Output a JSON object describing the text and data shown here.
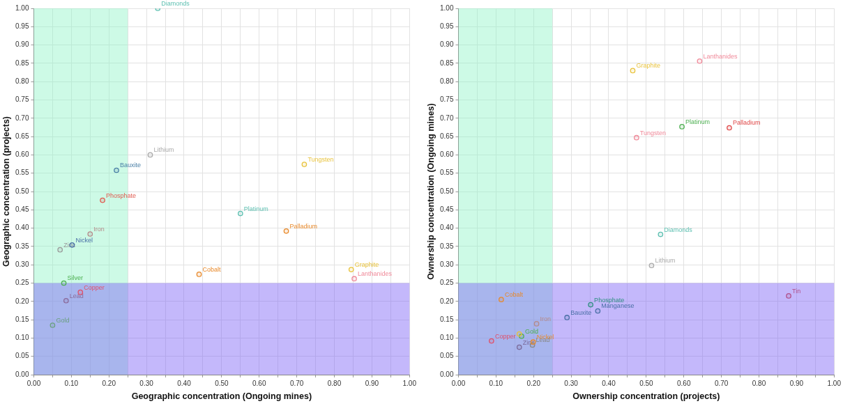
{
  "chart_data": [
    {
      "type": "scatter",
      "xlabel": "Geographic concentration (Ongoing mines)",
      "ylabel": "Geographic concentration (projects)",
      "marker": "circle",
      "grid": true,
      "legend": false,
      "xlim": [
        0,
        1
      ],
      "ylim": [
        0,
        1
      ],
      "xticks": [
        {
          "value": 0,
          "label": "0.00"
        },
        {
          "value": 0.05,
          "label": null
        },
        {
          "value": 0.1,
          "label": "0.10"
        },
        {
          "value": 0.15,
          "label": null
        },
        {
          "value": 0.2,
          "label": "0.20"
        },
        {
          "value": 0.25,
          "label": null
        },
        {
          "value": 0.3,
          "label": "0.30"
        },
        {
          "value": 0.35,
          "label": null
        },
        {
          "value": 0.4,
          "label": "0.40"
        },
        {
          "value": 0.45,
          "label": null
        },
        {
          "value": 0.5,
          "label": "0.50"
        },
        {
          "value": 0.55,
          "label": null
        },
        {
          "value": 0.6,
          "label": "0.60"
        },
        {
          "value": 0.65,
          "label": null
        },
        {
          "value": 0.7,
          "label": "0.70"
        },
        {
          "value": 0.75,
          "label": null
        },
        {
          "value": 0.8,
          "label": "0.80"
        },
        {
          "value": 0.85,
          "label": null
        },
        {
          "value": 0.9,
          "label": "0.90"
        },
        {
          "value": 0.95,
          "label": null
        },
        {
          "value": 1,
          "label": "1.00"
        }
      ],
      "yticks": [
        {
          "value": 0,
          "label": "0.00"
        },
        {
          "value": 0.05,
          "label": "0.05"
        },
        {
          "value": 0.1,
          "label": "0.10"
        },
        {
          "value": 0.15,
          "label": "0.15"
        },
        {
          "value": 0.2,
          "label": "0.20"
        },
        {
          "value": 0.25,
          "label": "0.25"
        },
        {
          "value": 0.3,
          "label": "0.30"
        },
        {
          "value": 0.35,
          "label": "0.35"
        },
        {
          "value": 0.4,
          "label": "0.40"
        },
        {
          "value": 0.45,
          "label": "0.45"
        },
        {
          "value": 0.5,
          "label": "0.50"
        },
        {
          "value": 0.55,
          "label": "0.55"
        },
        {
          "value": 0.6,
          "label": "0.60"
        },
        {
          "value": 0.65,
          "label": "0.65"
        },
        {
          "value": 0.7,
          "label": "0.70"
        },
        {
          "value": 0.75,
          "label": "0.75"
        },
        {
          "value": 0.8,
          "label": "0.80"
        },
        {
          "value": 0.85,
          "label": "0.85"
        },
        {
          "value": 0.9,
          "label": "0.90"
        },
        {
          "value": 0.95,
          "label": "0.95"
        },
        {
          "value": 1,
          "label": "1.00"
        }
      ],
      "bands": [
        {
          "axis": "x",
          "from": 0,
          "to": 0.25,
          "color": "#90f4c7"
        },
        {
          "axis": "y",
          "from": 0,
          "to": 0.25,
          "color": "#7c61f6"
        }
      ],
      "series": [
        {
          "name": "Diamonds",
          "color": "#5bbfb0",
          "x": [
            0.33
          ],
          "values": [
            1.0
          ]
        },
        {
          "name": "Lithium",
          "color": "#aaaaaa",
          "x": [
            0.31
          ],
          "values": [
            0.6
          ]
        },
        {
          "name": "Bauxite",
          "color": "#4a7fa6",
          "x": [
            0.22
          ],
          "values": [
            0.558
          ]
        },
        {
          "name": "Tungsten",
          "color": "#e8c23a",
          "x": [
            0.72
          ],
          "values": [
            0.574
          ]
        },
        {
          "name": "Phosphate",
          "color": "#e05a4f",
          "x": [
            0.183
          ],
          "values": [
            0.476
          ]
        },
        {
          "name": "Platinum",
          "color": "#5bbfb0",
          "x": [
            0.55
          ],
          "values": [
            0.44
          ]
        },
        {
          "name": "Palladium",
          "color": "#e8892a",
          "x": [
            0.672
          ],
          "values": [
            0.392
          ]
        },
        {
          "name": "Iron",
          "color": "#b58a8a",
          "x": [
            0.15
          ],
          "values": [
            0.384
          ]
        },
        {
          "name": "Nickel",
          "color": "#4a6fa6",
          "x": [
            0.102
          ],
          "values": [
            0.354
          ]
        },
        {
          "name": "Zinc",
          "color": "#999999",
          "x": [
            0.07
          ],
          "values": [
            0.341
          ]
        },
        {
          "name": "Cobalt",
          "color": "#e8892a",
          "x": [
            0.44
          ],
          "values": [
            0.274
          ]
        },
        {
          "name": "Graphite",
          "color": "#e8c23a",
          "x": [
            0.845
          ],
          "values": [
            0.287
          ]
        },
        {
          "name": "Lanthanides",
          "color": "#f08a9a",
          "x": [
            0.853
          ],
          "values": [
            0.262
          ]
        },
        {
          "name": "Silver",
          "color": "#4caf50",
          "x": [
            0.08
          ],
          "values": [
            0.25
          ]
        },
        {
          "name": "Copper",
          "color": "#e0506a",
          "x": [
            0.124
          ],
          "values": [
            0.225
          ]
        },
        {
          "name": "Lead",
          "color": "#8a6a9a",
          "x": [
            0.086
          ],
          "values": [
            0.202
          ]
        },
        {
          "name": "Gold",
          "color": "#6aa080",
          "x": [
            0.05
          ],
          "values": [
            0.135
          ]
        }
      ]
    },
    {
      "type": "scatter",
      "xlabel": "Ownership concentration (projects)",
      "ylabel": "Ownership concentration (Ongoing mines)",
      "marker": "circle",
      "grid": true,
      "legend": false,
      "xlim": [
        0,
        1
      ],
      "ylim": [
        0,
        1
      ],
      "xticks": [
        {
          "value": 0,
          "label": "0.00"
        },
        {
          "value": 0.05,
          "label": null
        },
        {
          "value": 0.1,
          "label": "0.10"
        },
        {
          "value": 0.15,
          "label": null
        },
        {
          "value": 0.2,
          "label": "0.20"
        },
        {
          "value": 0.25,
          "label": null
        },
        {
          "value": 0.3,
          "label": "0.30"
        },
        {
          "value": 0.35,
          "label": null
        },
        {
          "value": 0.4,
          "label": "0.40"
        },
        {
          "value": 0.45,
          "label": null
        },
        {
          "value": 0.5,
          "label": "0.50"
        },
        {
          "value": 0.55,
          "label": null
        },
        {
          "value": 0.6,
          "label": "0.60"
        },
        {
          "value": 0.65,
          "label": null
        },
        {
          "value": 0.7,
          "label": "0.70"
        },
        {
          "value": 0.75,
          "label": null
        },
        {
          "value": 0.8,
          "label": "0.80"
        },
        {
          "value": 0.85,
          "label": null
        },
        {
          "value": 0.9,
          "label": "0.90"
        },
        {
          "value": 0.95,
          "label": null
        },
        {
          "value": 1,
          "label": "1.00"
        }
      ],
      "yticks": [
        {
          "value": 0,
          "label": "0.00"
        },
        {
          "value": 0.05,
          "label": "0.05"
        },
        {
          "value": 0.1,
          "label": "0.10"
        },
        {
          "value": 0.15,
          "label": "0.15"
        },
        {
          "value": 0.2,
          "label": "0.20"
        },
        {
          "value": 0.25,
          "label": "0.25"
        },
        {
          "value": 0.3,
          "label": "0.30"
        },
        {
          "value": 0.35,
          "label": "0.35"
        },
        {
          "value": 0.4,
          "label": "0.40"
        },
        {
          "value": 0.45,
          "label": "0.45"
        },
        {
          "value": 0.5,
          "label": "0.50"
        },
        {
          "value": 0.55,
          "label": "0.55"
        },
        {
          "value": 0.6,
          "label": "0.60"
        },
        {
          "value": 0.65,
          "label": "0.65"
        },
        {
          "value": 0.7,
          "label": "0.70"
        },
        {
          "value": 0.75,
          "label": "0.75"
        },
        {
          "value": 0.8,
          "label": "0.80"
        },
        {
          "value": 0.85,
          "label": "0.85"
        },
        {
          "value": 0.9,
          "label": "0.90"
        },
        {
          "value": 0.95,
          "label": "0.95"
        },
        {
          "value": 1,
          "label": "1.00"
        }
      ],
      "bands": [
        {
          "axis": "x",
          "from": 0,
          "to": 0.25,
          "color": "#90f4c7"
        },
        {
          "axis": "y",
          "from": 0,
          "to": 0.25,
          "color": "#7c61f6"
        }
      ],
      "series": [
        {
          "name": "Lanthanides",
          "color": "#f08a9a",
          "x": [
            0.642
          ],
          "values": [
            0.856
          ]
        },
        {
          "name": "Graphite",
          "color": "#e8c23a",
          "x": [
            0.464
          ],
          "values": [
            0.83
          ]
        },
        {
          "name": "Platinum",
          "color": "#4caf50",
          "x": [
            0.595
          ],
          "values": [
            0.677
          ]
        },
        {
          "name": "Palladium",
          "color": "#e04848",
          "x": [
            0.721
          ],
          "values": [
            0.674
          ]
        },
        {
          "name": "Tungsten",
          "color": "#f08a9a",
          "x": [
            0.474
          ],
          "values": [
            0.647
          ]
        },
        {
          "name": "Diamonds",
          "color": "#5bbfb0",
          "x": [
            0.538
          ],
          "values": [
            0.383
          ]
        },
        {
          "name": "Lithium",
          "color": "#aaaaaa",
          "x": [
            0.514
          ],
          "values": [
            0.298
          ]
        },
        {
          "name": "Tin",
          "color": "#b0508a",
          "x": [
            0.879
          ],
          "values": [
            0.215
          ]
        },
        {
          "name": "Cobalt",
          "color": "#e8892a",
          "x": [
            0.114
          ],
          "values": [
            0.205
          ]
        },
        {
          "name": "Phosphate",
          "color": "#2f8f82",
          "x": [
            0.352
          ],
          "values": [
            0.191
          ]
        },
        {
          "name": "Manganese",
          "color": "#4a6fa6",
          "x": [
            0.371
          ],
          "values": [
            0.174
          ]
        },
        {
          "name": "Bauxite",
          "color": "#4a6fa6",
          "x": [
            0.289
          ],
          "values": [
            0.156
          ]
        },
        {
          "name": "Iron",
          "color": "#b58a8a",
          "x": [
            0.208
          ],
          "values": [
            0.139
          ]
        },
        {
          "color": "#e8c23a",
          "x": [
            0.162
          ],
          "values": [
            0.111
          ]
        },
        {
          "name": "Gold",
          "color": "#4caf50",
          "x": [
            0.168
          ],
          "values": [
            0.105
          ]
        },
        {
          "name": "Copper",
          "color": "#e0506a",
          "x": [
            0.088
          ],
          "values": [
            0.092
          ]
        },
        {
          "name": "Nickel",
          "color": "#e8892a",
          "x": [
            0.199
          ],
          "values": [
            0.089
          ]
        },
        {
          "name": "Lead",
          "color": "#888888",
          "x": [
            0.197
          ],
          "values": [
            0.081
          ]
        },
        {
          "name": "Zinc",
          "color": "#7a6a9a",
          "x": [
            0.162
          ],
          "values": [
            0.075
          ]
        }
      ]
    }
  ]
}
